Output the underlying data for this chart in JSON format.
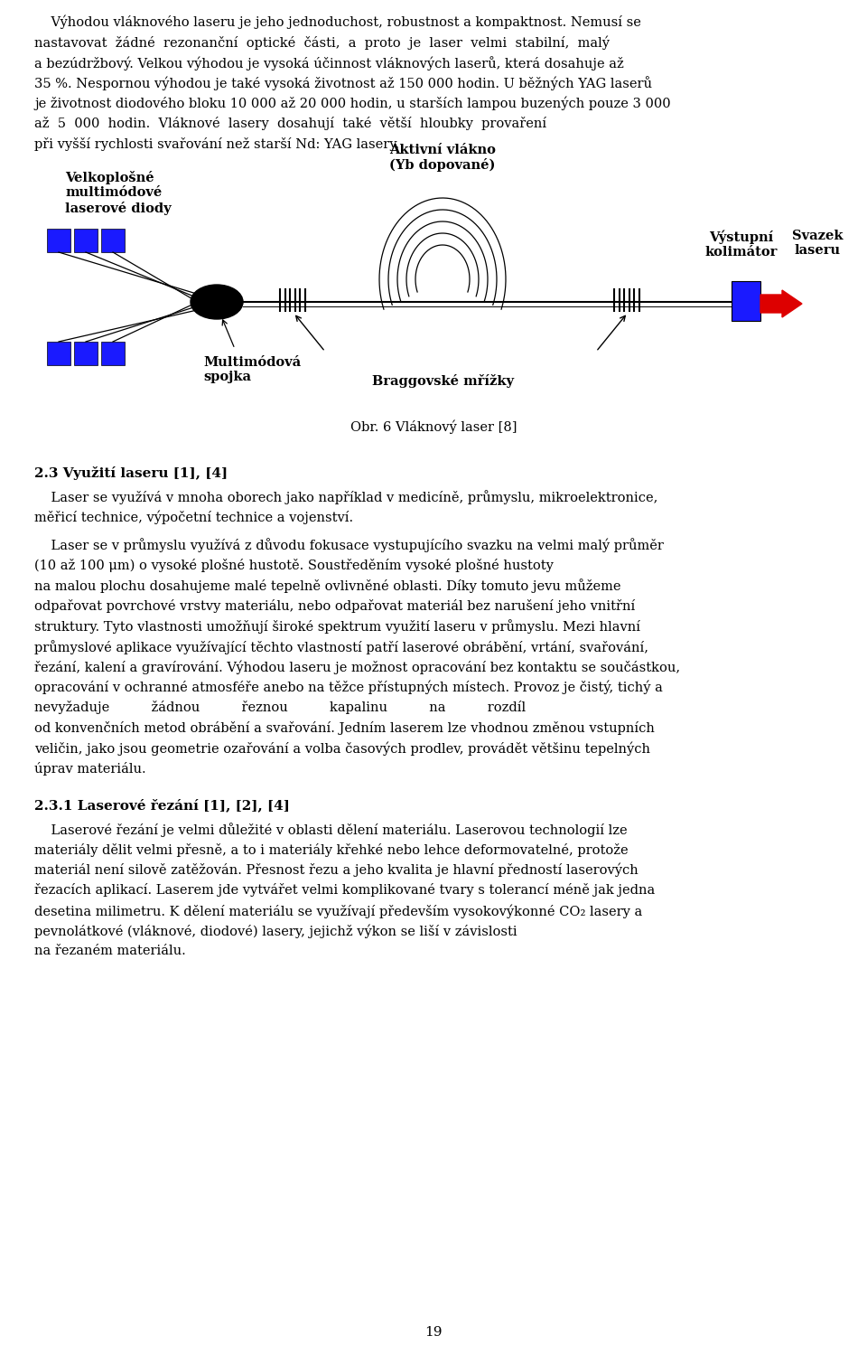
{
  "bg_color": "#ffffff",
  "text_color": "#000000",
  "paragraph1_lines": [
    "    Výhodou vláknového laseru je jeho jednoduchost, robustnost a kompaktnost. Nemusí se",
    "nastavovat  žádné  rezonanční  optické  části,  a  proto  je  laser  velmi  stabilní,  malý",
    "a bezúdržbový. Velkou výhodou je vysoká účinnost vláknových laserů, která dosahuje až",
    "35 %. Nespornou výhodou je také vysoká životnost až 150 000 hodin. U běžných YAG laserů",
    "je životnost diodového bloku 10 000 až 20 000 hodin, u starších lampou buzených pouze 3 000",
    "až  5  000  hodin.  Vláknové  lasery  dosahují  také  větší  hloubky  provaření",
    "při vyšší rychlosti svařování než starší Nd: YAG lasery."
  ],
  "caption": "Obr. 6 Vláknový laser [8]",
  "heading1": "2.3 Využití laseru [1], [4]",
  "para2_lines": [
    "    Laser se využívá v mnoha oborech jako například v medicíně, průmyslu, mikroelektronice,",
    "měřicí technice, výpočetní technice a vojenství."
  ],
  "para3_lines": [
    "    Laser se v průmyslu využívá z důvodu fokusace vystupujícího svazku na velmi malý průměr",
    "(10 až 100 μm) o vysoké plošné hustotě. Soustředěním vysoké plošné hustoty",
    "na malou plochu dosahujeme malé tepelně ovlivněné oblasti. Díky tomuto jevu můžeme",
    "odpařovat povrchové vrstvy materiálu, nebo odpařovat materiál bez narušení jeho vnitřní",
    "struktury. Tyto vlastnosti umožňují široké spektrum využití laseru v průmyslu. Mezi hlavní",
    "průmyslové aplikace využívající těchto vlastností patří laserové obrábění, vrtání, svařování,",
    "řezání, kalení a gravírování. Výhodou laseru je možnost opracování bez kontaktu se součástkou,",
    "opracování v ochranné atmosféře anebo na těžce přístupných místech. Provoz je čistý, tichý a",
    "nevyžaduje          žádnou          řeznou          kapalinu          na          rozdíl",
    "od konvenčních metod obrábění a svařování. Jedním laserem lze vhodnou změnou vstupních",
    "veličin, jako jsou geometrie ozařování a volba časových prodlev, provádět většinu tepelných",
    "úprav materiálu."
  ],
  "heading2": "2.3.1 Laserové řezání [1], [2], [4]",
  "para4_lines": [
    "    Laserové řezání je velmi důležité v oblasti dělení materiálu. Laserovou technologií lze",
    "materiály dělit velmi přesně, a to i materiály křehké nebo lehce deformovatelné, protože",
    "materiál není silově zatěžován. Přesnost řezu a jeho kvalita je hlavní předností laserových",
    "řezacích aplikací. Laserem jde vytvářet velmi komplikované tvary s tolerancí méně jak jedna",
    "desetina milimetru. K dělení materiálu se využívají především vysokovýkonné CO₂ lasery a",
    "pevnolátkové (vláknové, diodové) lasery, jejichž výkon se liší v závislosti",
    "na řezaném materiálu."
  ],
  "page_number": "19",
  "label_diody": "Velkoplošné\nmultimódové\nlaserové diody",
  "label_spojka": "Multimódová\nspojka",
  "label_aktivni": "Aktivní vlákno\n(Yb dopované)",
  "label_kolimator": "Výstupní\nkolimátor",
  "label_svazek": "Svazek\nlaseru",
  "label_bragg": "Braggovské mřížky",
  "blue_color": "#1a1aff",
  "red_color": "#dd0000",
  "black": "#000000"
}
